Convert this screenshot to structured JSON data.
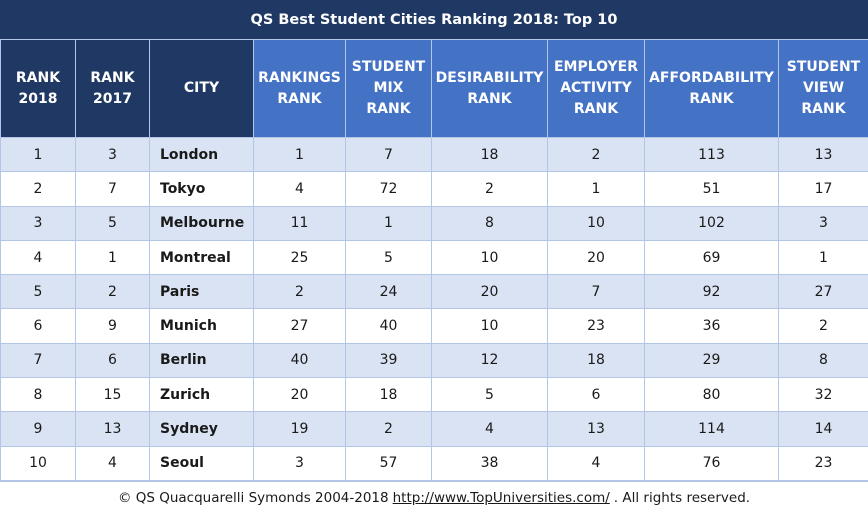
{
  "title": "QS Best Student Cities Ranking 2018: Top 10",
  "columns": [
    {
      "label": "RANK\n2018",
      "style": "dark"
    },
    {
      "label": "RANK\n2017",
      "style": "dark"
    },
    {
      "label": "CITY",
      "style": "dark"
    },
    {
      "label": "RANKINGS\nRANK",
      "style": "light"
    },
    {
      "label": "STUDENT\nMIX\nRANK",
      "style": "light"
    },
    {
      "label": "DESIRABILITY\nRANK",
      "style": "light"
    },
    {
      "label": "EMPLOYER\nACTIVITY\nRANK",
      "style": "light"
    },
    {
      "label": "AFFORDABILITY\nRANK",
      "style": "light"
    },
    {
      "label": "STUDENT\nVIEW\nRANK",
      "style": "light"
    }
  ],
  "rows": [
    [
      "1",
      "3",
      "London",
      "1",
      "7",
      "18",
      "2",
      "113",
      "13"
    ],
    [
      "2",
      "7",
      "Tokyo",
      "4",
      "72",
      "2",
      "1",
      "51",
      "17"
    ],
    [
      "3",
      "5",
      "Melbourne",
      "11",
      "1",
      "8",
      "10",
      "102",
      "3"
    ],
    [
      "4",
      "1",
      "Montreal",
      "25",
      "5",
      "10",
      "20",
      "69",
      "1"
    ],
    [
      "5",
      "2",
      "Paris",
      "2",
      "24",
      "20",
      "7",
      "92",
      "27"
    ],
    [
      "6",
      "9",
      "Munich",
      "27",
      "40",
      "10",
      "23",
      "36",
      "2"
    ],
    [
      "7",
      "6",
      "Berlin",
      "40",
      "39",
      "12",
      "18",
      "29",
      "8"
    ],
    [
      "8",
      "15",
      "Zurich",
      "20",
      "18",
      "5",
      "6",
      "80",
      "32"
    ],
    [
      "9",
      "13",
      "Sydney",
      "19",
      "2",
      "4",
      "13",
      "114",
      "14"
    ],
    [
      "10",
      "4",
      "Seoul",
      "3",
      "57",
      "38",
      "4",
      "76",
      "23"
    ]
  ],
  "footer": {
    "prefix": "© QS Quacquarelli Symonds 2004-2018",
    "link": "http://www.TopUniversities.com/",
    "suffix": ". All rights reserved."
  }
}
